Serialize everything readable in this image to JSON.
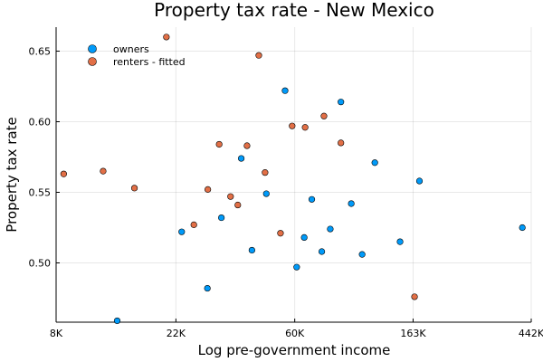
{
  "chart_data": {
    "type": "scatter",
    "title": "Property tax rate - New Mexico",
    "xlabel": "Log pre-government income",
    "ylabel": "Property tax rate",
    "x_scale": "log",
    "xlim": [
      8000,
      442000
    ],
    "ylim": [
      0.458,
      0.667
    ],
    "x_ticks": [
      {
        "value": 8000,
        "label": "8K"
      },
      {
        "value": 22000,
        "label": "22K"
      },
      {
        "value": 60000,
        "label": "60K"
      },
      {
        "value": 163000,
        "label": "163K"
      },
      {
        "value": 442000,
        "label": "442K"
      }
    ],
    "y_ticks": [
      {
        "value": 0.5,
        "label": "0.50"
      },
      {
        "value": 0.55,
        "label": "0.55"
      },
      {
        "value": 0.6,
        "label": "0.60"
      },
      {
        "value": 0.65,
        "label": "0.65"
      }
    ],
    "grid": true,
    "legend_position": "top-left",
    "series": [
      {
        "name": "owners",
        "color": "#009af9",
        "points": [
          [
            13400,
            0.459
          ],
          [
            23100,
            0.522
          ],
          [
            28700,
            0.482
          ],
          [
            32300,
            0.532
          ],
          [
            38200,
            0.574
          ],
          [
            41800,
            0.509
          ],
          [
            47200,
            0.549
          ],
          [
            55300,
            0.622
          ],
          [
            61000,
            0.497
          ],
          [
            65000,
            0.518
          ],
          [
            69300,
            0.545
          ],
          [
            75400,
            0.508
          ],
          [
            81000,
            0.524
          ],
          [
            88600,
            0.614
          ],
          [
            96700,
            0.542
          ],
          [
            106000,
            0.506
          ],
          [
            118000,
            0.571
          ],
          [
            146000,
            0.515
          ],
          [
            172000,
            0.558
          ],
          [
            410000,
            0.525
          ]
        ]
      },
      {
        "name": "renters - fitted",
        "color": "#e26f46",
        "points": [
          [
            8530,
            0.563
          ],
          [
            11900,
            0.565
          ],
          [
            15500,
            0.553
          ],
          [
            20300,
            0.66
          ],
          [
            25600,
            0.527
          ],
          [
            28800,
            0.552
          ],
          [
            31700,
            0.584
          ],
          [
            34900,
            0.547
          ],
          [
            37100,
            0.541
          ],
          [
            40100,
            0.583
          ],
          [
            44300,
            0.647
          ],
          [
            46700,
            0.564
          ],
          [
            53200,
            0.521
          ],
          [
            58700,
            0.597
          ],
          [
            65500,
            0.596
          ],
          [
            76800,
            0.604
          ],
          [
            88600,
            0.585
          ],
          [
            165000,
            0.476
          ]
        ]
      }
    ]
  }
}
